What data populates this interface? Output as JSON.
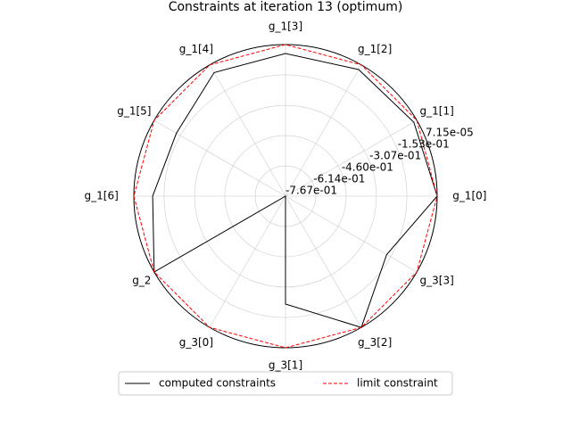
{
  "chart_data": {
    "type": "radar",
    "title": "Constraints at iteration 13 (optimum)",
    "categories": [
      "g_1[0]",
      "g_1[1]",
      "g_1[2]",
      "g_1[3]",
      "g_1[4]",
      "g_1[5]",
      "g_1[6]",
      "g_2",
      "g_3[0]",
      "g_3[1]",
      "g_3[2]",
      "g_3[3]"
    ],
    "series": [
      {
        "name": "computed constraints",
        "color": "#000000",
        "dash": "solid",
        "values": [
          0,
          -0.018,
          -0.027,
          -0.045,
          -0.045,
          -0.13,
          -0.095,
          0,
          -0.767,
          -0.221,
          0,
          -0.176
        ]
      },
      {
        "name": "limit constraint",
        "color": "#ff0000",
        "dash": "dashed",
        "values": [
          0,
          0,
          0,
          0,
          0,
          0,
          0,
          0,
          0,
          0,
          0,
          0
        ]
      }
    ],
    "ylim": [
      -0.767,
      7.15e-05
    ],
    "yticks": [
      {
        "value": -0.767,
        "label": "-7.67e-01"
      },
      {
        "value": -0.614,
        "label": "-6.14e-01"
      },
      {
        "value": -0.46,
        "label": "-4.60e-01"
      },
      {
        "value": -0.307,
        "label": "-3.07e-01"
      },
      {
        "value": -0.153,
        "label": "-1.53e-01"
      },
      {
        "value": 7.15e-05,
        "label": "7.15e-05"
      }
    ],
    "grid": true,
    "legend": "lower center"
  }
}
